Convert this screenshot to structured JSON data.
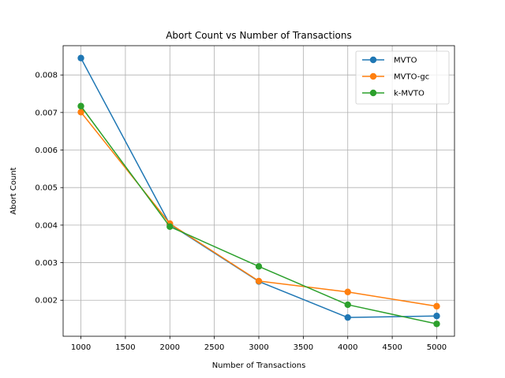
{
  "chart_data": {
    "type": "line",
    "title": "Abort Count vs Number of Transactions",
    "xlabel": "Number of Transactions",
    "ylabel": "Abort Count",
    "x": [
      1000,
      2000,
      3000,
      4000,
      5000
    ],
    "xlim": [
      800,
      5200
    ],
    "ylim": [
      0.00104,
      0.00878
    ],
    "x_ticks": [
      1000,
      1500,
      2000,
      2500,
      3000,
      3500,
      4000,
      4500,
      5000
    ],
    "x_tick_labels": [
      "1000",
      "1500",
      "2000",
      "2500",
      "3000",
      "3500",
      "4000",
      "4500",
      "5000"
    ],
    "y_ticks": [
      0.002,
      0.003,
      0.004,
      0.005,
      0.006,
      0.007,
      0.008
    ],
    "y_tick_labels": [
      "0.002",
      "0.003",
      "0.004",
      "0.005",
      "0.006",
      "0.007",
      "0.008"
    ],
    "grid": true,
    "legend_position": "top-right",
    "series": [
      {
        "name": "MVTO",
        "color": "#1f77b4",
        "marker": "circle",
        "values": [
          0.00845,
          0.00402,
          0.0025,
          0.00154,
          0.00158
        ]
      },
      {
        "name": "MVTO-gc",
        "color": "#ff7f0e",
        "marker": "circle",
        "values": [
          0.00701,
          0.00404,
          0.00251,
          0.00222,
          0.00184
        ]
      },
      {
        "name": "k-MVTO",
        "color": "#2ca02c",
        "marker": "circle",
        "values": [
          0.00717,
          0.00396,
          0.0029,
          0.00188,
          0.00137
        ]
      }
    ]
  }
}
